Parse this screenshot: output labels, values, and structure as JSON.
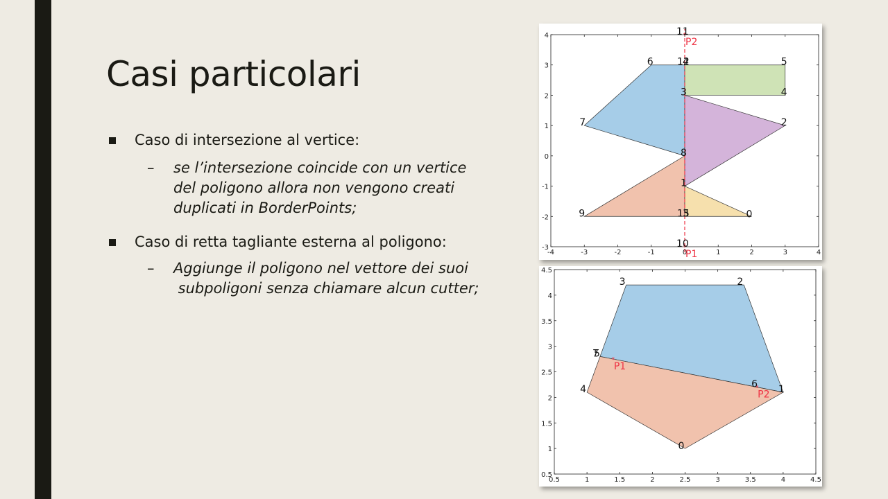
{
  "slide": {
    "title": "Casi particolari",
    "bullets": [
      {
        "text": "Caso di intersezione al vertice:",
        "sub": [
          "se l’intersezione coincide con un vertice",
          "del poligono allora non vengono creati",
          "duplicati in BorderPoints;"
        ]
      },
      {
        "text": "Caso di retta tagliante esterna al poligono:",
        "sub": [
          "Aggiunge il poligono nel vettore dei suoi",
          " subpoligoni senza chiamare alcun cutter;"
        ]
      }
    ],
    "dash": "–"
  },
  "colors": {
    "background": "#eeebe3",
    "accent_bar": "#1a1a14",
    "blue": "#a6cde8",
    "green": "#cfe3b6",
    "purple": "#d4b4da",
    "salmon": "#f1c2ad",
    "yellow": "#f6e0ad",
    "cut_line": "#ee3344"
  },
  "chart_data": [
    {
      "type": "polygon-plot",
      "xlim": [
        -4,
        4
      ],
      "ylim": [
        -3,
        4
      ],
      "xticks": [
        "-4",
        "-3",
        "-2",
        "-1",
        "0",
        "1",
        "2",
        "3",
        "4"
      ],
      "yticks": [
        "-3",
        "-2",
        "-1",
        "0",
        "1",
        "2",
        "3",
        "4"
      ],
      "polygons": [
        {
          "color": "blue",
          "points": [
            [
              0,
              3
            ],
            [
              -1,
              3
            ],
            [
              -3,
              1
            ],
            [
              0,
              0
            ],
            [
              0,
              2
            ]
          ]
        },
        {
          "color": "green",
          "points": [
            [
              0,
              3
            ],
            [
              3,
              3
            ],
            [
              3,
              2
            ],
            [
              0,
              2
            ]
          ]
        },
        {
          "color": "purple",
          "points": [
            [
              0,
              2
            ],
            [
              3,
              1
            ],
            [
              0,
              -1
            ],
            [
              0,
              0
            ]
          ]
        },
        {
          "color": "salmon",
          "points": [
            [
              0,
              0
            ],
            [
              0,
              -2
            ],
            [
              -3,
              -2
            ]
          ]
        },
        {
          "color": "yellow",
          "points": [
            [
              0,
              -1
            ],
            [
              2,
              -2
            ],
            [
              0,
              -2
            ]
          ]
        }
      ],
      "cut_line": [
        [
          0,
          -3
        ],
        [
          0,
          4
        ]
      ],
      "points": [
        {
          "label": "P1",
          "x": 0,
          "y": -3
        },
        {
          "label": "P2",
          "x": 0,
          "y": 4
        }
      ],
      "vertex_labels": [
        {
          "t": "0",
          "x": 2,
          "y": -2
        },
        {
          "t": "1",
          "x": 0,
          "y": -1
        },
        {
          "t": "2",
          "x": 3,
          "y": 1
        },
        {
          "t": "3",
          "x": 0,
          "y": 2
        },
        {
          "t": "4",
          "x": 3,
          "y": 2
        },
        {
          "t": "5",
          "x": 3,
          "y": 3
        },
        {
          "t": "6",
          "x": -1,
          "y": 3
        },
        {
          "t": "7",
          "x": -3,
          "y": 1
        },
        {
          "t": "8",
          "x": 0,
          "y": 0
        },
        {
          "t": "9",
          "x": -3,
          "y": -2
        },
        {
          "t": "10",
          "x": 0,
          "y": -3
        },
        {
          "t": "11",
          "x": 0,
          "y": 4
        },
        {
          "t": "12",
          "x": 0,
          "y": 3
        },
        {
          "t": "4",
          "x": 0,
          "y": 3
        },
        {
          "t": "15",
          "x": 0,
          "y": -2
        },
        {
          "t": "3",
          "x": 0,
          "y": -2
        }
      ]
    },
    {
      "type": "polygon-plot",
      "xlim": [
        0.5,
        4.5
      ],
      "ylim": [
        0.5,
        4.5
      ],
      "xticks": [
        "0.5",
        "1",
        "1.5",
        "2",
        "2.5",
        "3",
        "3.5",
        "4",
        "4.5"
      ],
      "yticks": [
        "0.5",
        "1",
        "1.5",
        "2",
        "2.5",
        "3",
        "3.5",
        "4",
        "4.5"
      ],
      "polygons": [
        {
          "color": "blue",
          "points": [
            [
              1.6,
              4.2
            ],
            [
              3.4,
              4.2
            ],
            [
              4,
              2.1
            ],
            [
              3.6,
              2.2
            ],
            [
              1.4,
              2.75
            ],
            [
              1.2,
              2.8
            ]
          ]
        },
        {
          "color": "salmon",
          "points": [
            [
              1.2,
              2.8
            ],
            [
              1.4,
              2.75
            ],
            [
              3.6,
              2.2
            ],
            [
              4,
              2.1
            ],
            [
              2.5,
              1
            ],
            [
              1,
              2.1
            ]
          ]
        }
      ],
      "points": [
        {
          "label": "P1",
          "x": 1.4,
          "y": 2.75
        },
        {
          "label": "P2",
          "x": 3.6,
          "y": 2.2
        }
      ],
      "vertex_labels": [
        {
          "t": "0",
          "x": 2.5,
          "y": 1
        },
        {
          "t": "1",
          "x": 4,
          "y": 2.1
        },
        {
          "t": "2",
          "x": 3.4,
          "y": 4.2
        },
        {
          "t": "3",
          "x": 1.6,
          "y": 4.2
        },
        {
          "t": "4",
          "x": 1,
          "y": 2.1
        },
        {
          "t": "5",
          "x": 1.2,
          "y": 2.8
        },
        {
          "t": "6",
          "x": 3.6,
          "y": 2.2
        },
        {
          "t": "7",
          "x": 1.2,
          "y": 2.8
        }
      ]
    }
  ]
}
